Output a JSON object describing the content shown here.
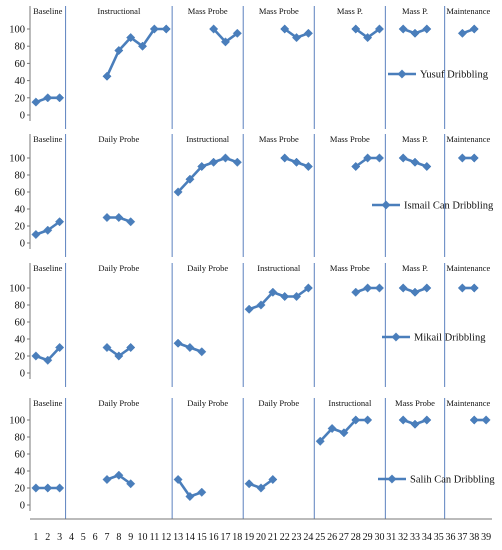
{
  "chart_data": [
    {
      "type": "line",
      "series": [
        {
          "name": "Yusuf Dribbling",
          "segments": [
            {
              "x": [
                1,
                2,
                3
              ],
              "y": [
                15,
                20,
                20
              ]
            },
            {
              "x": [
                7,
                8,
                9,
                10,
                11,
                12
              ],
              "y": [
                45,
                75,
                90,
                80,
                100,
                100
              ]
            },
            {
              "x": [
                16,
                17,
                18
              ],
              "y": [
                100,
                85,
                95
              ]
            },
            {
              "x": [
                22,
                23,
                24
              ],
              "y": [
                100,
                90,
                95
              ]
            },
            {
              "x": [
                28,
                29,
                30
              ],
              "y": [
                100,
                90,
                100
              ]
            },
            {
              "x": [
                32,
                33,
                34
              ],
              "y": [
                100,
                95,
                100
              ]
            },
            {
              "x": [
                37,
                38
              ],
              "y": [
                95,
                100
              ]
            }
          ]
        }
      ],
      "phases": [
        {
          "label": "Baseline",
          "start": 0.5,
          "end": 3.5
        },
        {
          "label": "Instructional",
          "start": 3.5,
          "end": 12.5
        },
        {
          "label": "Mass Probe",
          "start": 12.5,
          "end": 18.5
        },
        {
          "label": "Mass Probe",
          "start": 18.5,
          "end": 24.5
        },
        {
          "label": "Mass P.",
          "start": 24.5,
          "end": 30.5
        },
        {
          "label": "Mass P.",
          "start": 30.5,
          "end": 35.5
        },
        {
          "label": "Maintenance",
          "start": 35.5,
          "end": 39.5
        }
      ],
      "legend": {
        "label": "Yusuf Dribbling"
      },
      "yticks": [
        0,
        20,
        40,
        60,
        80,
        100
      ],
      "ylim": [
        0,
        100
      ]
    },
    {
      "type": "line",
      "series": [
        {
          "name": "Ismail Can Dribbling",
          "segments": [
            {
              "x": [
                1,
                2,
                3
              ],
              "y": [
                10,
                15,
                25
              ]
            },
            {
              "x": [
                7,
                8,
                9
              ],
              "y": [
                30,
                30,
                25
              ]
            },
            {
              "x": [
                13,
                14,
                15,
                16,
                17,
                18
              ],
              "y": [
                60,
                75,
                90,
                95,
                100,
                95
              ]
            },
            {
              "x": [
                22,
                23,
                24
              ],
              "y": [
                100,
                95,
                90
              ]
            },
            {
              "x": [
                28,
                29,
                30
              ],
              "y": [
                90,
                100,
                100
              ]
            },
            {
              "x": [
                32,
                33,
                34
              ],
              "y": [
                100,
                95,
                90
              ]
            },
            {
              "x": [
                37,
                38
              ],
              "y": [
                100,
                100
              ]
            }
          ]
        }
      ],
      "phases": [
        {
          "label": "Baseline",
          "start": 0.5,
          "end": 3.5
        },
        {
          "label": "Daily Probe",
          "start": 3.5,
          "end": 12.5
        },
        {
          "label": "Instructional",
          "start": 12.5,
          "end": 18.5
        },
        {
          "label": "Mass Probe",
          "start": 18.5,
          "end": 24.5
        },
        {
          "label": "Mass Probe",
          "start": 24.5,
          "end": 30.5
        },
        {
          "label": "Mass P.",
          "start": 30.5,
          "end": 35.5
        },
        {
          "label": "Maintenance",
          "start": 35.5,
          "end": 39.5
        }
      ],
      "legend": {
        "label": "Ismail Can Dribbling"
      },
      "yticks": [
        0,
        20,
        40,
        60,
        80,
        100
      ],
      "ylim": [
        0,
        100
      ]
    },
    {
      "type": "line",
      "series": [
        {
          "name": "Mikail Dribbling",
          "segments": [
            {
              "x": [
                1,
                2,
                3
              ],
              "y": [
                20,
                15,
                30
              ]
            },
            {
              "x": [
                7,
                8,
                9
              ],
              "y": [
                30,
                20,
                30
              ]
            },
            {
              "x": [
                13,
                14,
                15
              ],
              "y": [
                35,
                30,
                25
              ]
            },
            {
              "x": [
                19,
                20,
                21,
                22,
                23,
                24
              ],
              "y": [
                75,
                80,
                95,
                90,
                90,
                100
              ]
            },
            {
              "x": [
                28,
                29,
                30
              ],
              "y": [
                95,
                100,
                100
              ]
            },
            {
              "x": [
                32,
                33,
                34
              ],
              "y": [
                100,
                95,
                100
              ]
            },
            {
              "x": [
                37,
                38
              ],
              "y": [
                100,
                100
              ]
            }
          ]
        }
      ],
      "phases": [
        {
          "label": "Baseline",
          "start": 0.5,
          "end": 3.5
        },
        {
          "label": "Daily Probe",
          "start": 3.5,
          "end": 12.5
        },
        {
          "label": "Daily Probe",
          "start": 12.5,
          "end": 18.5
        },
        {
          "label": "Instructional",
          "start": 18.5,
          "end": 24.5
        },
        {
          "label": "Mass Probe",
          "start": 24.5,
          "end": 30.5
        },
        {
          "label": "Mass P.",
          "start": 30.5,
          "end": 35.5
        },
        {
          "label": "Maintenance",
          "start": 35.5,
          "end": 39.5
        }
      ],
      "legend": {
        "label": "Mikail Dribbling"
      },
      "yticks": [
        0,
        20,
        40,
        60,
        80,
        100
      ],
      "ylim": [
        0,
        100
      ]
    },
    {
      "type": "line",
      "series": [
        {
          "name": "Salih Can Dribbling",
          "segments": [
            {
              "x": [
                1,
                2,
                3
              ],
              "y": [
                20,
                20,
                20
              ]
            },
            {
              "x": [
                7,
                8,
                9
              ],
              "y": [
                30,
                35,
                25
              ]
            },
            {
              "x": [
                13,
                14,
                15
              ],
              "y": [
                30,
                10,
                15
              ]
            },
            {
              "x": [
                19,
                20,
                21
              ],
              "y": [
                25,
                20,
                30
              ]
            },
            {
              "x": [
                25,
                26,
                27,
                28,
                29
              ],
              "y": [
                75,
                90,
                85,
                100,
                100
              ]
            },
            {
              "x": [
                32,
                33,
                34
              ],
              "y": [
                100,
                95,
                100
              ]
            },
            {
              "x": [
                38,
                39
              ],
              "y": [
                100,
                100
              ]
            }
          ]
        }
      ],
      "phases": [
        {
          "label": "Baseline",
          "start": 0.5,
          "end": 3.5
        },
        {
          "label": "Daily Probe",
          "start": 3.5,
          "end": 12.5
        },
        {
          "label": "Daily Probe",
          "start": 12.5,
          "end": 18.5
        },
        {
          "label": "Daily Probe",
          "start": 18.5,
          "end": 24.5
        },
        {
          "label": "Instructional",
          "start": 24.5,
          "end": 30.5
        },
        {
          "label": "Mass Probe",
          "start": 30.5,
          "end": 35.5
        },
        {
          "label": "Maintenance",
          "start": 35.5,
          "end": 39.5
        }
      ],
      "legend": {
        "label": "Salih Can Dribbling"
      },
      "yticks": [
        0,
        20,
        40,
        60,
        80,
        100
      ],
      "ylim": [
        0,
        100
      ]
    }
  ],
  "x_axis": {
    "ticks": [
      1,
      2,
      3,
      4,
      5,
      6,
      7,
      8,
      9,
      10,
      11,
      12,
      13,
      14,
      15,
      16,
      17,
      18,
      19,
      20,
      21,
      22,
      23,
      24,
      25,
      26,
      27,
      28,
      29,
      30,
      31,
      32,
      33,
      34,
      35,
      36,
      37,
      38,
      39
    ],
    "xlim": [
      0.5,
      39.5
    ]
  },
  "colors": {
    "series": "#4a7ebb",
    "phase_line": "#6a8cc4",
    "axis": "#777777"
  }
}
